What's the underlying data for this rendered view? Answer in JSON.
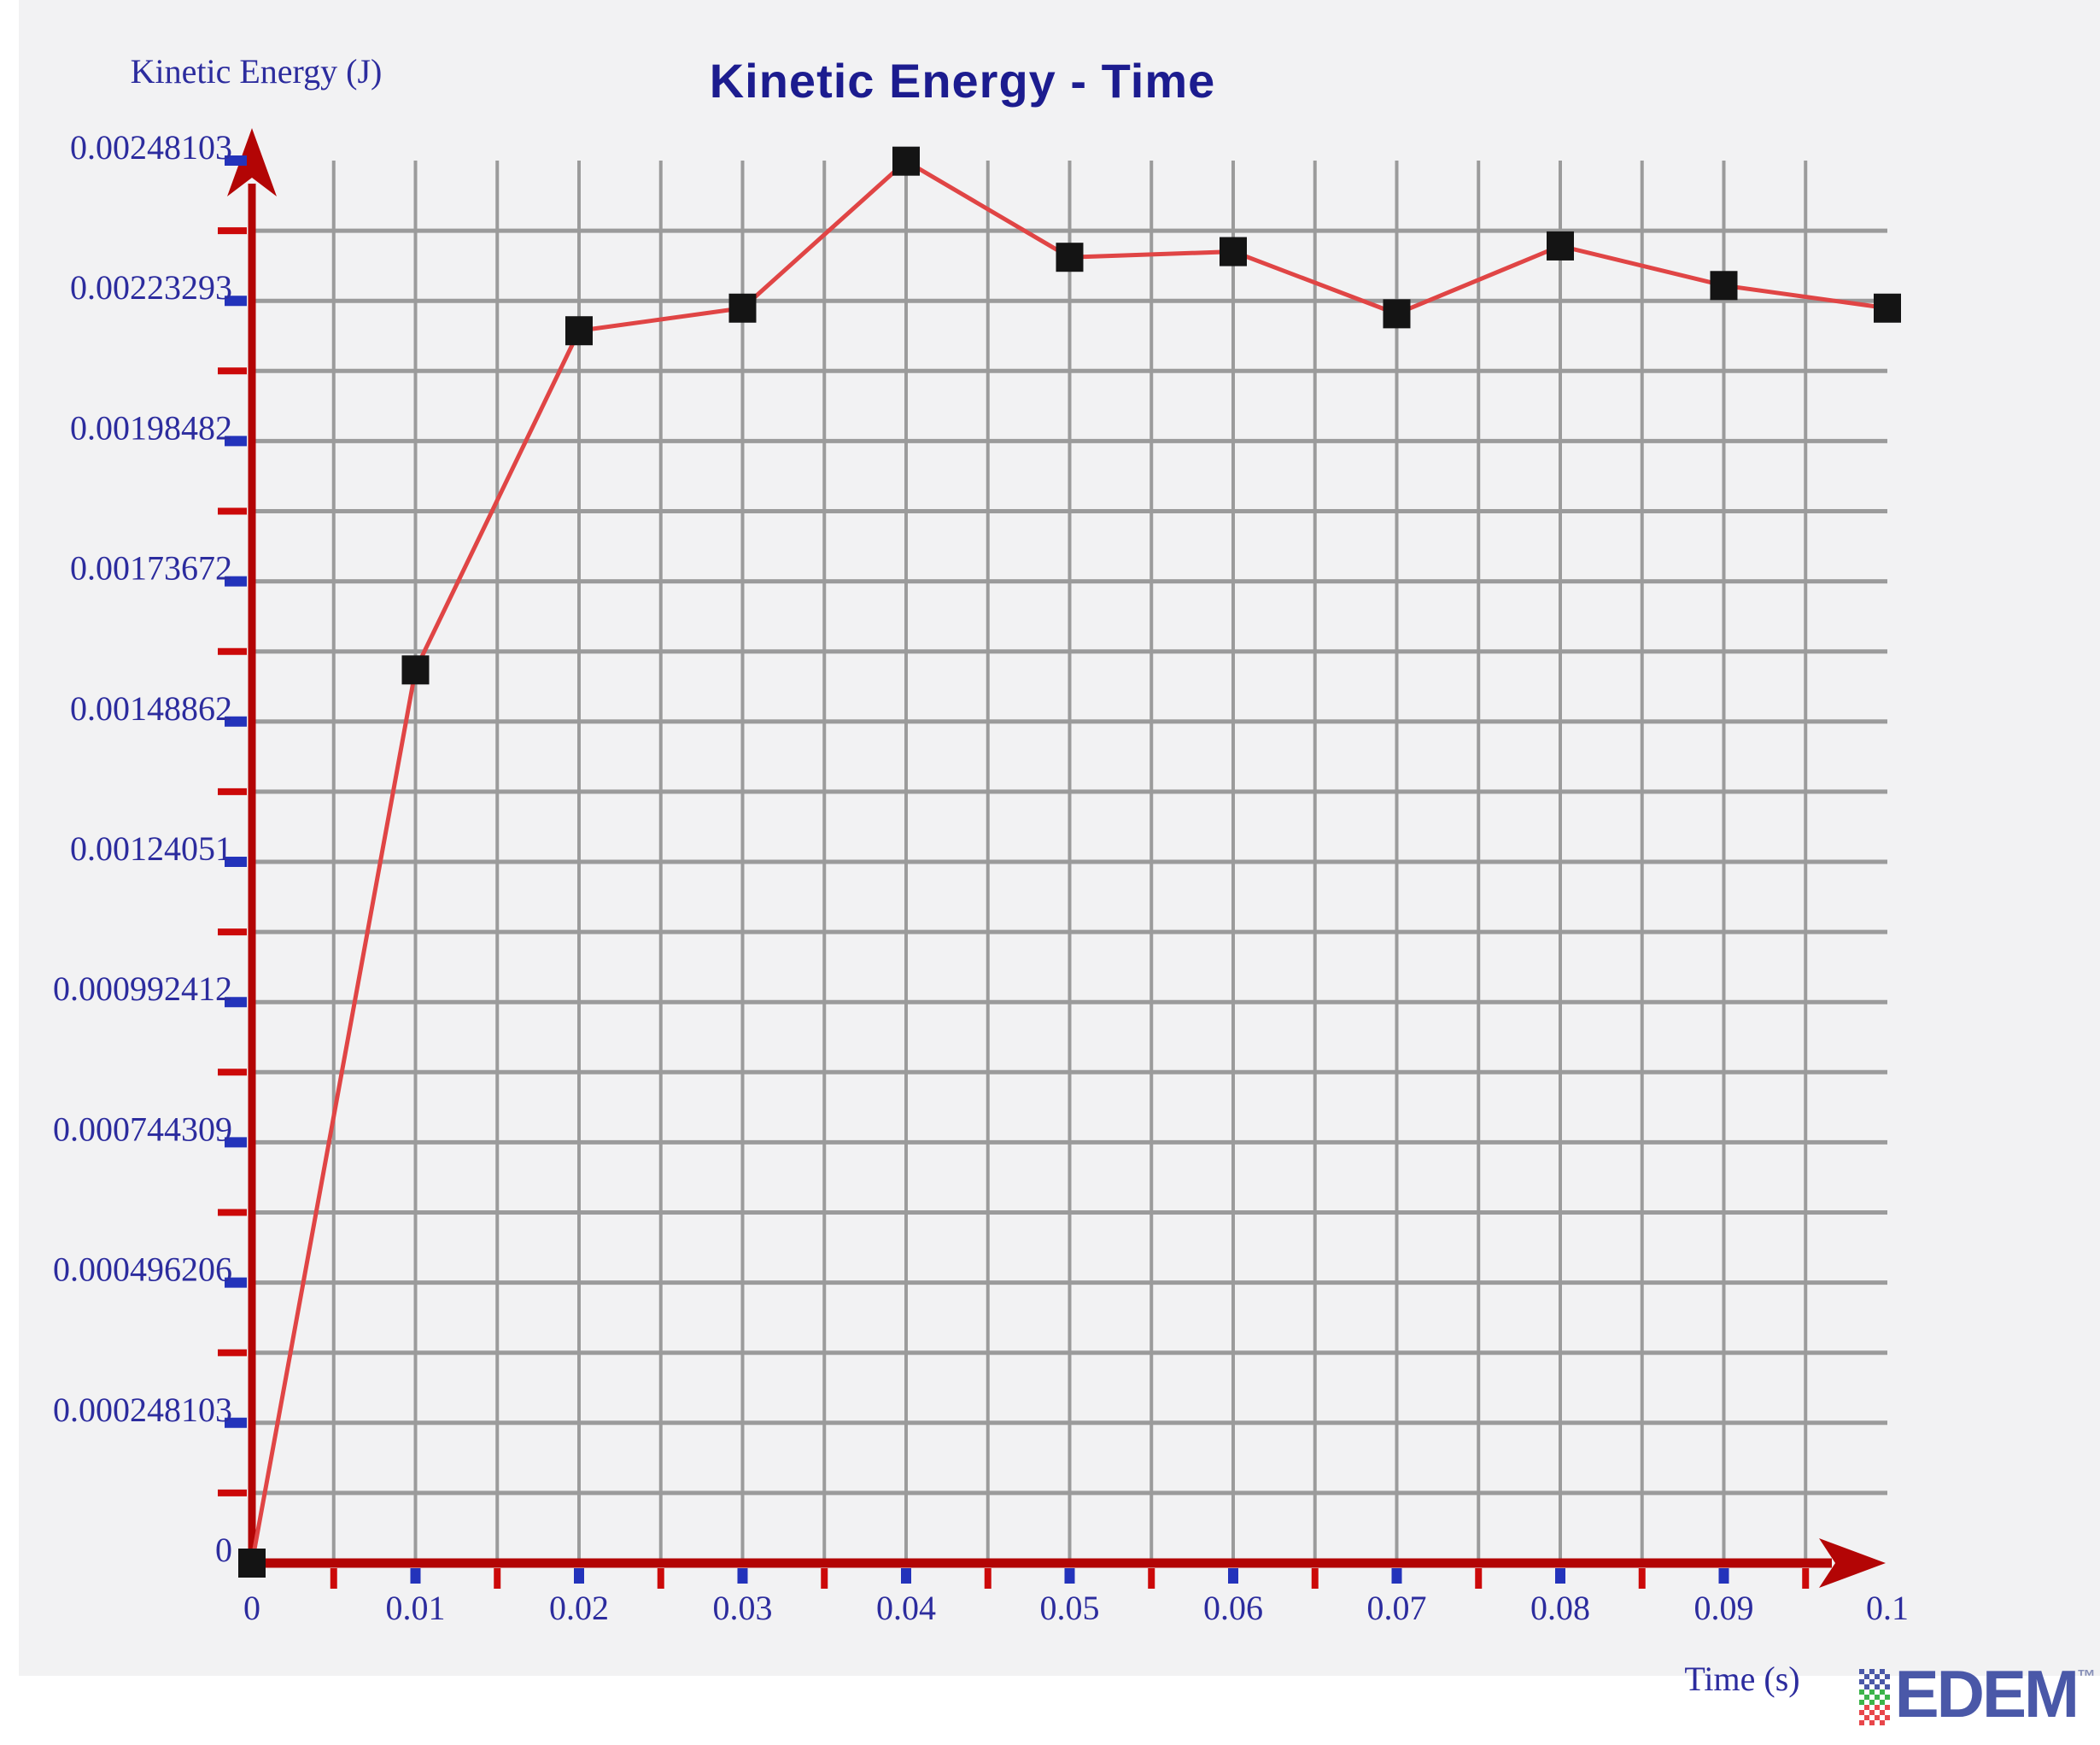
{
  "page": {
    "background": "#f2f2f3",
    "bottom_strip": "#ffffff"
  },
  "header": {
    "title": "Kinetic Energy - Time"
  },
  "axes": {
    "y_label": "Kinetic Energy (J)",
    "x_label": "Time (s)"
  },
  "chart_data": {
    "type": "line",
    "title": "Kinetic Energy - Time",
    "xlabel": "Time (s)",
    "ylabel": "Kinetic Energy (J)",
    "x": [
      0,
      0.01,
      0.02,
      0.03,
      0.04,
      0.05,
      0.06,
      0.07,
      0.08,
      0.09,
      0.1
    ],
    "y": [
      0,
      0.00158,
      0.00218,
      0.00222,
      0.00248,
      0.00231,
      0.00232,
      0.00221,
      0.00233,
      0.00226,
      0.00222
    ],
    "xlim": [
      0,
      0.1
    ],
    "ylim": [
      0,
      0.00248103
    ],
    "x_tick_labels": [
      "0",
      "0.01",
      "0.02",
      "0.03",
      "0.04",
      "0.05",
      "0.06",
      "0.07",
      "0.08",
      "0.09",
      "0.1"
    ],
    "y_tick_labels": [
      "0",
      "0.000248103",
      "0.000496206",
      "0.000744309",
      "0.000992412",
      "0.00124051",
      "0.00148862",
      "0.00173672",
      "0.00198482",
      "0.00223293",
      "0.00248103"
    ],
    "grid": true,
    "minor_divisions_per_major": 2,
    "legend_position": "none",
    "marker": "square"
  },
  "colors": {
    "background": "#f2f2f3",
    "grid": "#9b9b9b",
    "axis": "#b30505",
    "minor_tick": "#cc0909",
    "major_tick": "#2333bb",
    "tick_label": "#2c2c9e",
    "title": "#1c1c8f",
    "series_line": "#e04545",
    "marker": "#141414",
    "logo_blue": "#4a58a8",
    "logo_green": "#3cb44a",
    "logo_red": "#e8474b"
  },
  "logo": {
    "text": "EDEM",
    "trademark": "™"
  }
}
